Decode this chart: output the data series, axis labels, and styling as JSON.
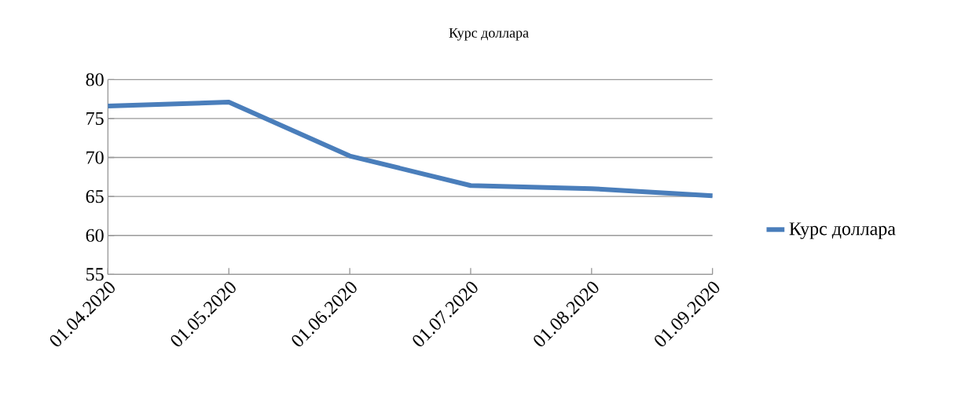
{
  "chart_data": {
    "type": "line",
    "title": "Курс доллара",
    "categories": [
      "01.04.2020",
      "01.05.2020",
      "01.06.2020",
      "01.07.2020",
      "01.08.2020",
      "01.09.2020"
    ],
    "series": [
      {
        "name": "Курс доллара",
        "color": "#4a7ebb",
        "values": [
          76.6,
          77.1,
          70.2,
          66.4,
          66.0,
          65.1
        ]
      }
    ],
    "ylim": [
      55,
      80
    ],
    "yticks": [
      55,
      60,
      65,
      70,
      75,
      80
    ],
    "grid": "y",
    "legend": "right",
    "marker": "none",
    "line_style": "solid"
  }
}
